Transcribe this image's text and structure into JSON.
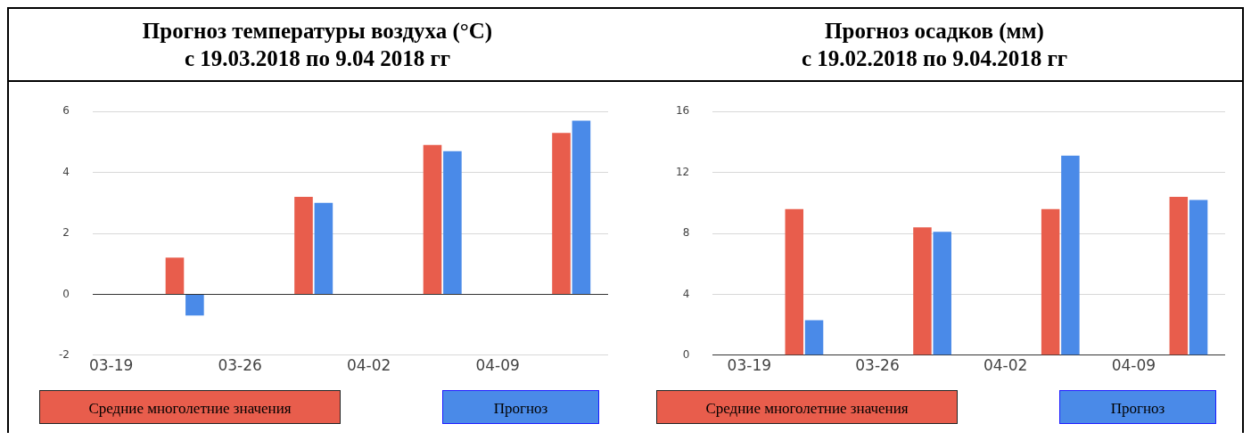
{
  "chart_data": [
    {
      "type": "bar",
      "title": "Прогноз температуры воздуха (°C)\nс 19.03.2018 по 9.04 2018 гг",
      "x": [
        "--03-23",
        "--03-30",
        "--04-06",
        "--04-13"
      ],
      "series": [
        {
          "name": "Средние многолетние значения",
          "color": "#e85d4c",
          "values": [
            1.2,
            3.2,
            4.9,
            5.3
          ]
        },
        {
          "name": "Прогноз",
          "color": "#4a8ae8",
          "values": [
            -0.7,
            3.0,
            4.7,
            5.7
          ]
        }
      ],
      "xlim": [
        "--03-18",
        "--04-15"
      ],
      "xticks": [
        {
          "value": "--03-19",
          "label": "03-19"
        },
        {
          "value": "--03-26",
          "label": "03-26"
        },
        {
          "value": "--04-02",
          "label": "04-02"
        },
        {
          "value": "--04-09",
          "label": "04-09"
        }
      ],
      "ylim": [
        -2,
        6
      ],
      "yticks": [
        -2,
        0,
        2,
        4,
        6
      ],
      "grid": "y",
      "legend": "bottom"
    },
    {
      "type": "bar",
      "title": "Прогноз осадков (мм)\nс 19.02.2018 по 9.04.2018 гг",
      "x": [
        "--03-22",
        "--03-29",
        "--04-05",
        "--04-12"
      ],
      "series": [
        {
          "name": "Средние многолетние значения",
          "color": "#e85d4c",
          "values": [
            9.6,
            8.4,
            9.6,
            10.4
          ]
        },
        {
          "name": "Прогноз",
          "color": "#4a8ae8",
          "values": [
            2.3,
            8.1,
            13.1,
            10.2
          ]
        }
      ],
      "xlim": [
        "--03-17",
        "--04-14"
      ],
      "xticks": [
        {
          "value": "--03-19",
          "label": "03-19"
        },
        {
          "value": "--03-26",
          "label": "03-26"
        },
        {
          "value": "--04-02",
          "label": "04-02"
        },
        {
          "value": "--04-09",
          "label": "04-09"
        }
      ],
      "ylim": [
        0,
        16
      ],
      "yticks": [
        0,
        4,
        8,
        12,
        16
      ],
      "grid": "y",
      "legend": "bottom"
    }
  ]
}
